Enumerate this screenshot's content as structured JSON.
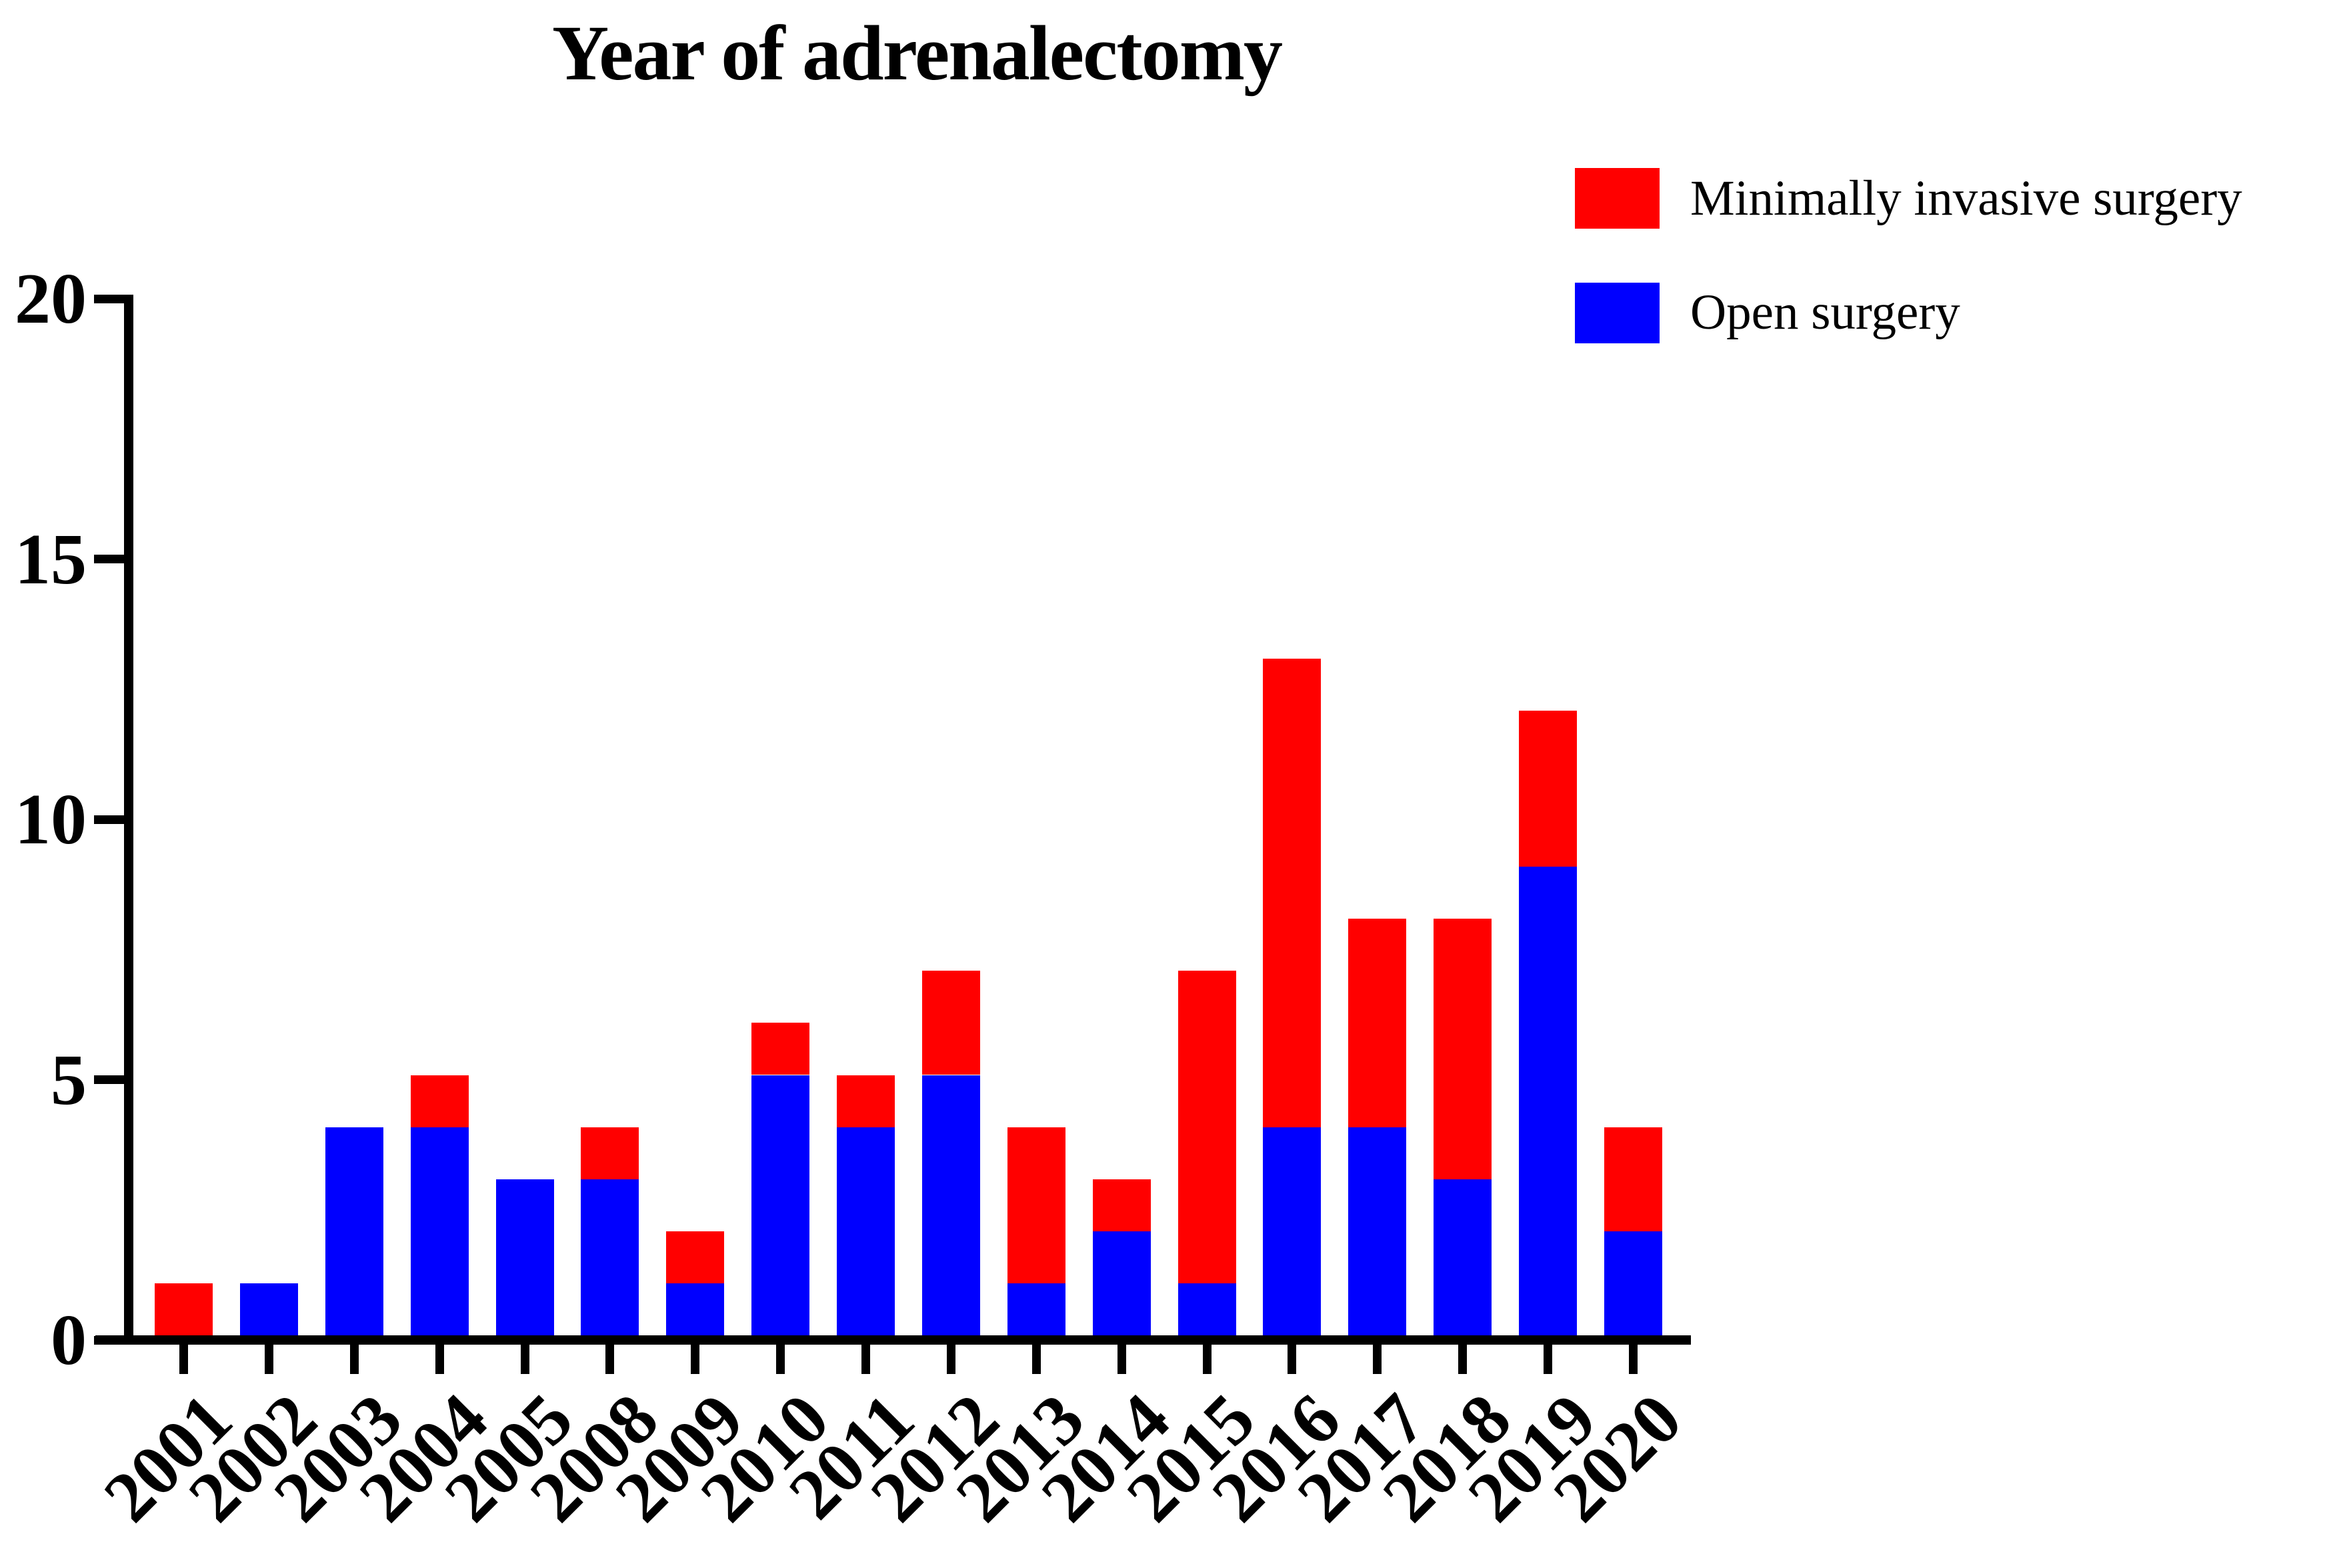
{
  "chart_data": {
    "type": "bar",
    "stacked": true,
    "title": "Year of adrenalectomy",
    "categories": [
      "2001",
      "2002",
      "2003",
      "2004",
      "2005",
      "2008",
      "2009",
      "2010",
      "2011",
      "2012",
      "2013",
      "2014",
      "2015",
      "2016",
      "2017",
      "2018",
      "2019",
      "2020"
    ],
    "series": [
      {
        "name": "Minimally invasive surgery",
        "color": "#ff0000",
        "stack_position": "top",
        "values": [
          1,
          0,
          0,
          1,
          0,
          1,
          1,
          1,
          1,
          2,
          3,
          1,
          6,
          9,
          4,
          5,
          3,
          2
        ]
      },
      {
        "name": "Open surgery",
        "color": "#0000ff",
        "stack_position": "bottom",
        "values": [
          0,
          1,
          4,
          4,
          3,
          3,
          1,
          5,
          4,
          5,
          1,
          2,
          1,
          4,
          4,
          3,
          9,
          2
        ]
      }
    ],
    "totals": [
      1,
      1,
      4,
      5,
      3,
      4,
      2,
      6,
      5,
      7,
      4,
      3,
      7,
      13,
      8,
      8,
      12,
      4
    ],
    "xlabel": "",
    "ylabel": "",
    "y_axis": {
      "ticks": [
        0,
        5,
        10,
        15,
        20
      ],
      "range": [
        0,
        20
      ]
    },
    "x_tick_rotation_deg": 45,
    "legend_position": "top-right",
    "grid": false,
    "colors": {
      "minimally_invasive": "#ff0000",
      "open": "#0000ff",
      "axis": "#000000",
      "background": "#ffffff"
    }
  }
}
